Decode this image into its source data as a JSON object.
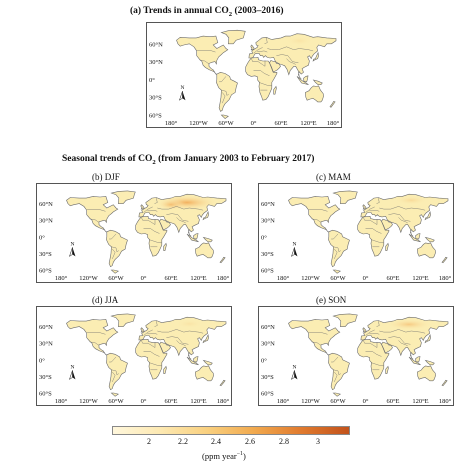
{
  "main_title": {
    "prefix": "(a)  Trends in annual CO",
    "sub": "2",
    "suffix": " (2003–2016)"
  },
  "seasonal_title": {
    "prefix": "Seasonal trends of CO",
    "sub": "2",
    "suffix": " (from January 2003 to February 2017)"
  },
  "panels": {
    "a": {
      "label": ""
    },
    "b": {
      "label": "(b) DJF"
    },
    "c": {
      "label": "(c) MAM"
    },
    "d": {
      "label": "(d) JJA"
    },
    "e": {
      "label": "(e) SON"
    }
  },
  "north_arrow": "N",
  "lat_ticks": [
    "60°N",
    "30°N",
    "0°",
    "30°S",
    "60°S"
  ],
  "lon_ticks": [
    "180°",
    "120°W",
    "60°W",
    "0°",
    "60°E",
    "120°E",
    "180°"
  ],
  "colorbar": {
    "labels": [
      "2",
      "2.2",
      "2.4",
      "2.6",
      "2.8",
      "3"
    ],
    "unit_prefix": "(ppm year",
    "unit_sup": "−1",
    "unit_suffix": ")",
    "colors": [
      "#fff7dc",
      "#fde9b2",
      "#f9d07f",
      "#f1a94e",
      "#e07a2e",
      "#c2521b"
    ]
  },
  "colors": {
    "land": "#fbedb3",
    "land_hot": "#f2ad5a",
    "border": "#6b6b6b"
  }
}
